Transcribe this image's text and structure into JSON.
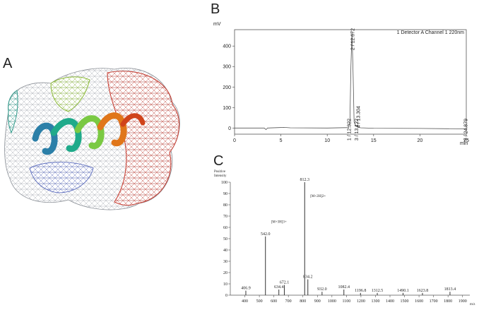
{
  "panels": {
    "a": {
      "letter": "A"
    },
    "b": {
      "letter": "B"
    },
    "c": {
      "letter": "C"
    }
  },
  "colors": {
    "axis": "#555555",
    "trace": "#555555",
    "ms_bar": "#333333",
    "helix": [
      "#2b7fa8",
      "#1faa8a",
      "#7ac943",
      "#c7c21f",
      "#e0761a",
      "#d0431a"
    ],
    "mesh": [
      "#9aa0a8",
      "#2f9a8a",
      "#8dbb3a",
      "#c8453a",
      "#5f6fbf"
    ]
  },
  "chart_data": [
    {
      "type": "line",
      "panel": "B",
      "ylabel": "mV",
      "xlabel": "min",
      "legend": "1 Detector A Channel 1 220nm",
      "xlim": [
        0,
        25
      ],
      "ylim": [
        -30,
        480
      ],
      "x_ticks": [
        0,
        5,
        10,
        15,
        20,
        25
      ],
      "y_ticks": [
        0,
        100,
        200,
        300,
        400
      ],
      "trace": [
        [
          0,
          0
        ],
        [
          3.2,
          0
        ],
        [
          3.4,
          -8
        ],
        [
          3.55,
          0
        ],
        [
          4.8,
          2
        ],
        [
          5.3,
          3
        ],
        [
          6,
          1
        ],
        [
          10,
          0
        ],
        [
          12.3,
          2
        ],
        [
          12.45,
          40
        ],
        [
          12.55,
          300
        ],
        [
          12.67,
          470
        ],
        [
          12.8,
          250
        ],
        [
          12.9,
          30
        ],
        [
          13.1,
          8
        ],
        [
          13.3,
          5
        ],
        [
          13.6,
          1
        ],
        [
          15,
          -1
        ],
        [
          20,
          -2
        ],
        [
          24.9,
          -4
        ],
        [
          25,
          -4
        ]
      ],
      "peaks": [
        {
          "label": "1 / 12.322",
          "rt": 12.322
        },
        {
          "label": "2 / 12.672",
          "rt": 12.672
        },
        {
          "label": "3 / 13.122",
          "rt": 13.122
        },
        {
          "label": "4 / 13.304",
          "rt": 13.304
        },
        {
          "label": "5 / 24.879",
          "rt": 24.879
        }
      ]
    },
    {
      "type": "bar",
      "panel": "C",
      "ylabel": "Positive\nIntensity",
      "xlabel": "m/z",
      "xlim": [
        300,
        1950
      ],
      "ylim": [
        0,
        100
      ],
      "x_ticks": [
        400,
        500,
        600,
        700,
        800,
        900,
        1000,
        1100,
        1200,
        1300,
        1400,
        1500,
        1600,
        1700,
        1800,
        1900
      ],
      "y_ticks": [
        0,
        10,
        20,
        30,
        40,
        50,
        60,
        70,
        80,
        90,
        100
      ],
      "peaks": [
        {
          "mz": 406.9,
          "intensity": 4,
          "label": "406.9"
        },
        {
          "mz": 542.0,
          "intensity": 52,
          "label": "542.0"
        },
        {
          "mz": 634.4,
          "intensity": 5,
          "label": "634.4"
        },
        {
          "mz": 672.1,
          "intensity": 9,
          "label": "672.1"
        },
        {
          "mz": 812.3,
          "intensity": 100,
          "label": "812.3"
        },
        {
          "mz": 834.2,
          "intensity": 14,
          "label": "834.2"
        },
        {
          "mz": 932.0,
          "intensity": 3,
          "label": "932.0"
        },
        {
          "mz": 1082.4,
          "intensity": 5,
          "label": "1082.4"
        },
        {
          "mz": 1196.8,
          "intensity": 2,
          "label": "1196.8"
        },
        {
          "mz": 1312.5,
          "intensity": 2,
          "label": "1312.5"
        },
        {
          "mz": 1490.1,
          "intensity": 2,
          "label": "1490.1"
        },
        {
          "mz": 1623.8,
          "intensity": 2,
          "label": "1623.8"
        },
        {
          "mz": 1813.4,
          "intensity": 3,
          "label": "1813.4"
        }
      ],
      "annotations": [
        {
          "text": "[M+3H]3+",
          "mz": 542.0,
          "intensity": 64
        },
        {
          "text": "[M+2H]2+",
          "mz": 812.3,
          "intensity": 87
        }
      ]
    }
  ]
}
